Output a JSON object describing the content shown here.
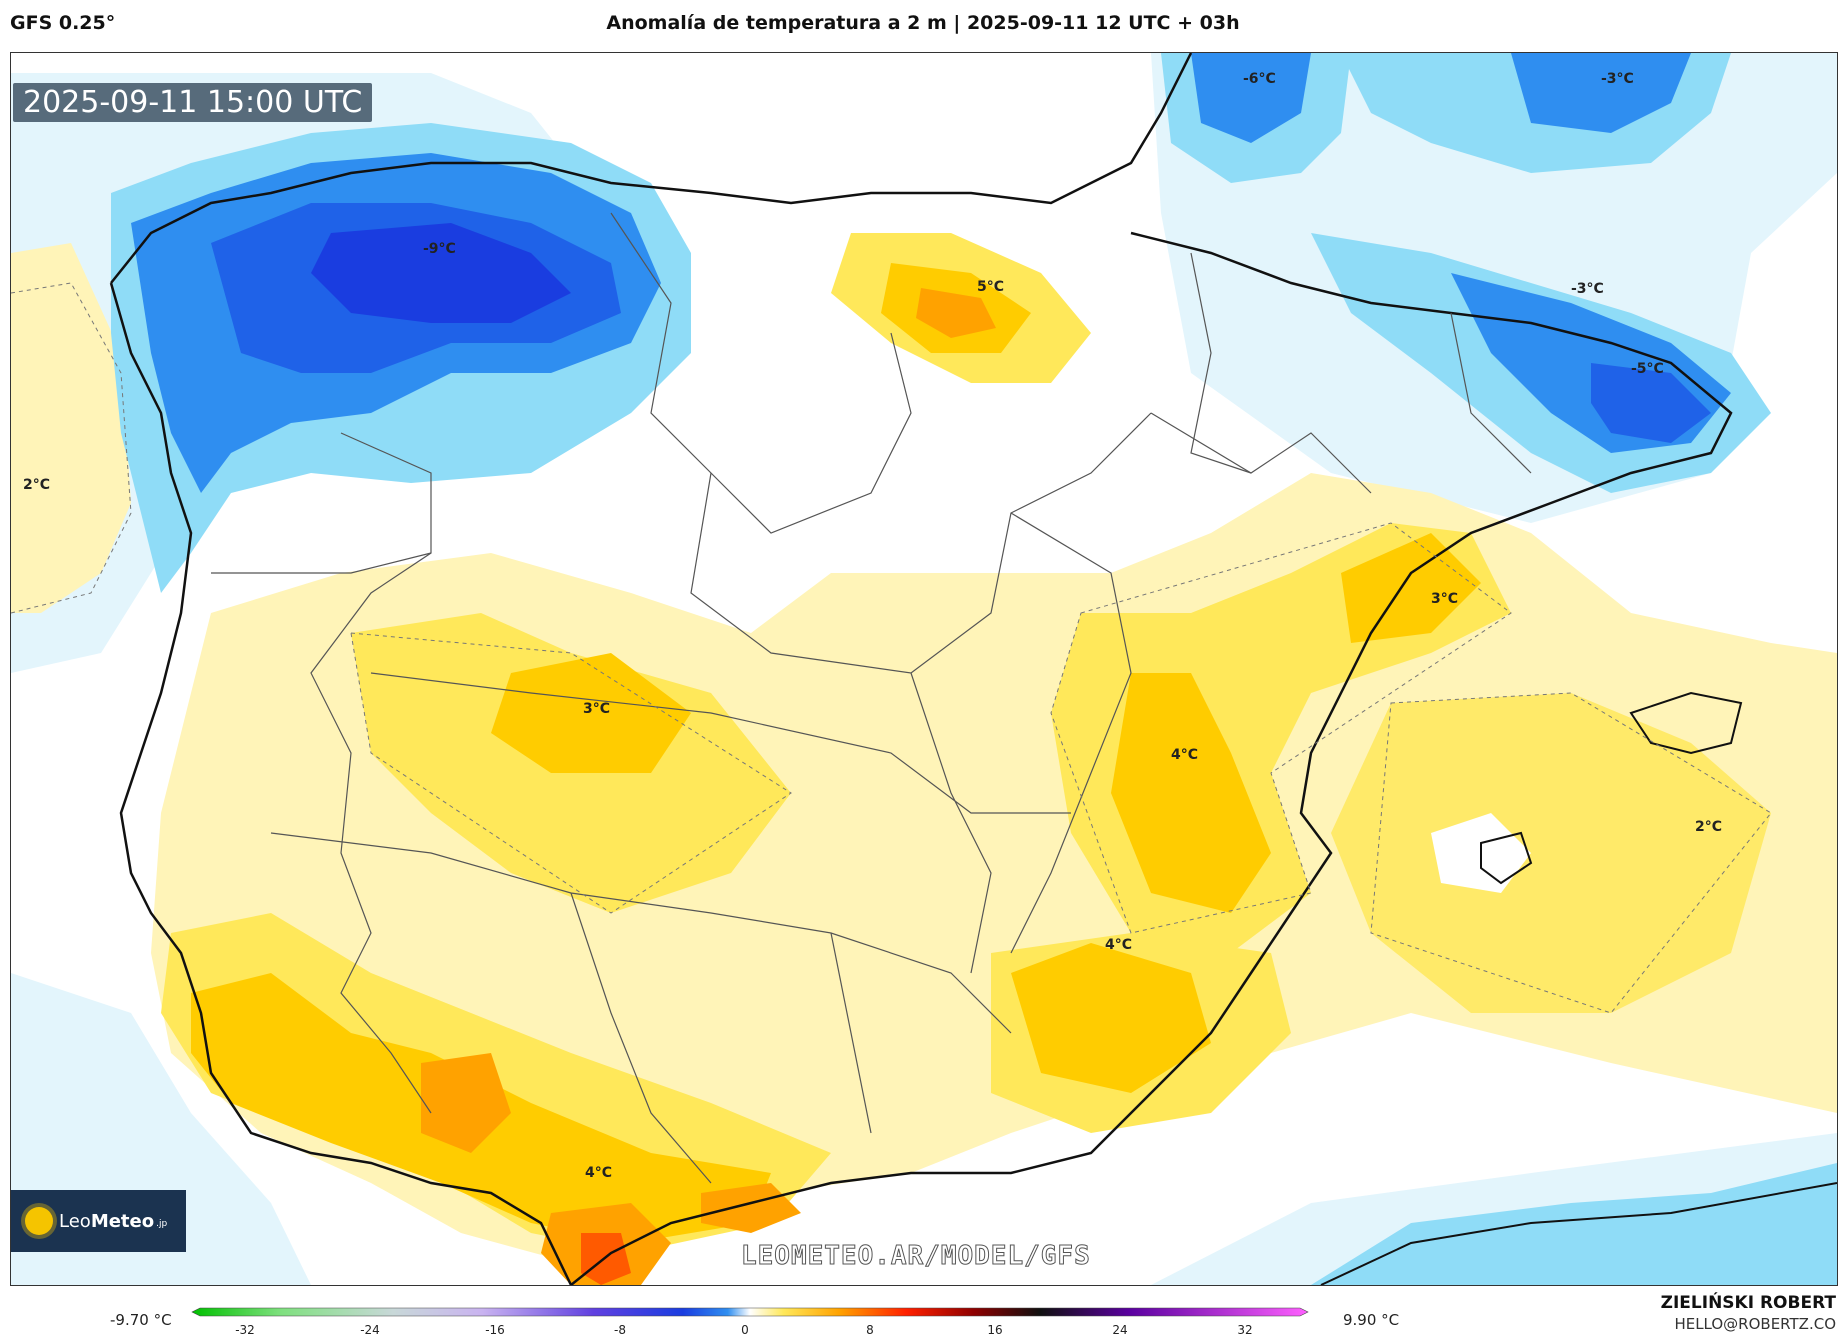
{
  "header": {
    "model": "GFS 0.25°",
    "title": "Anomalía de temperatura a 2 m | 2025-09-11 12 UTC + 03h"
  },
  "map": {
    "timestamp": "2025-09-11 15:00 UTC",
    "watermark": "LEOMETEO.AR/MODEL/GFS",
    "logo": {
      "text_light": "Leo",
      "text_bold": "Meteo",
      "suffix": ".jp"
    },
    "labels": [
      {
        "text": "-9°C"
      },
      {
        "text": "5°C"
      },
      {
        "text": "-6°C"
      },
      {
        "text": "-3°C"
      },
      {
        "text": "-3°C"
      },
      {
        "text": "-5°C"
      },
      {
        "text": "2°C"
      },
      {
        "text": "3°C"
      },
      {
        "text": "3°C"
      },
      {
        "text": "4°C"
      },
      {
        "text": "2°C"
      },
      {
        "text": "4°C"
      },
      {
        "text": "4°C"
      }
    ]
  },
  "legend": {
    "min": "-9.70 °C",
    "max": "9.90 °C",
    "ticks": [
      "-32",
      "-24",
      "-16",
      "-8",
      "0",
      "8",
      "16",
      "24",
      "32"
    ]
  },
  "credits": {
    "name": "ZIELIŃSKI ROBERT",
    "email": "HELLO@ROBERTZ.CO"
  },
  "colors": {
    "cold_strong": "#1a3de0",
    "cold_mid": "#2f8ef0",
    "cold_light": "#8fdcf7",
    "cold_pale": "#dff4fb",
    "warm_pale": "#fff4b8",
    "warm_light": "#ffe85a",
    "warm_mid": "#ffcc00",
    "warm_strong": "#ffa200",
    "warm_hot": "#ff5a00"
  }
}
